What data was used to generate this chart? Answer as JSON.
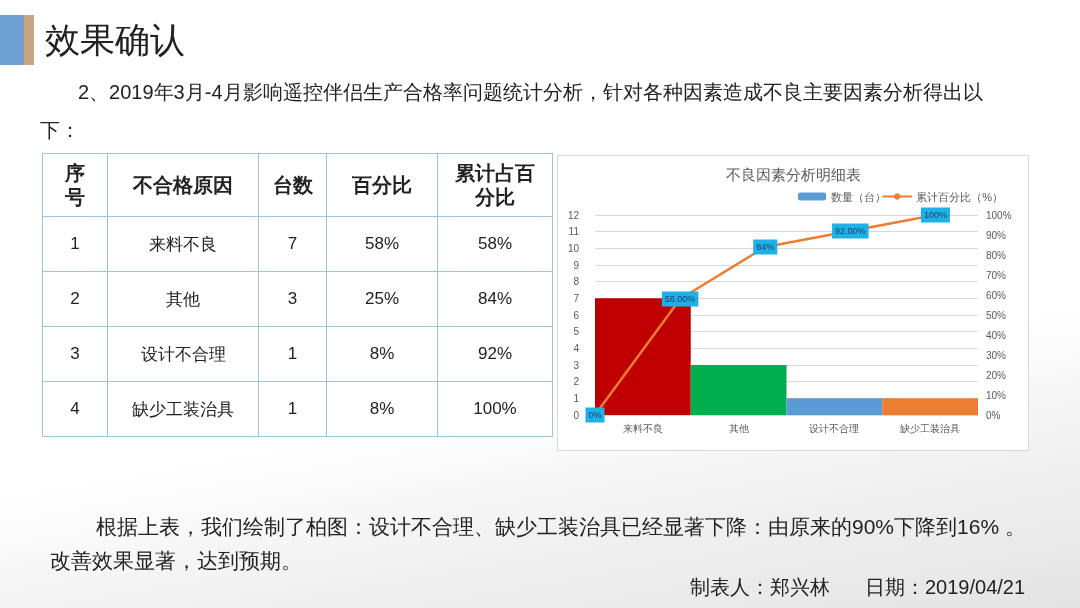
{
  "chart_data": [
    {
      "type": "other",
      "title": "效果确认",
      "subtitle": "2、2019年3月-4月影响遥控伴侣生产合格率问题统计分析，针对各种因素造成不良主要因素分析得出以下：",
      "xlabel": "不合格原因",
      "categories": [
        "来料不良",
        "其他",
        "设计不合理",
        "缺少工装治具"
      ],
      "data_labels": true,
      "series": [
        {
          "name": "序号",
          "values": [
            1,
            2,
            3,
            4
          ]
        },
        {
          "name": "台数",
          "values": [
            7,
            3,
            1,
            1
          ]
        },
        {
          "name": "百分比",
          "values": [
            58,
            25,
            8,
            8
          ],
          "value_labels": [
            "58%",
            "25%",
            "8%",
            "8%"
          ]
        },
        {
          "name": "累计占百分比",
          "values": [
            58,
            84,
            92,
            100
          ],
          "value_labels": [
            "58%",
            "84%",
            "92%",
            "100%"
          ]
        }
      ],
      "annotations": [
        "根据上表，我们绘制了柏图：设计不合理、缺少工装治具已经显著下降：由原来的90%下降到16% 。改善效果显著，达到预期。",
        "制表人：郑兴林",
        "日期：2019/04/21"
      ]
    },
    {
      "type": "bar",
      "title": "不良因素分析明细表",
      "categories": [
        "来料不良",
        "其他",
        "设计不合理",
        "缺少工装治具"
      ],
      "series": [
        {
          "name": "数量（台）",
          "color": "#5b9bd5",
          "colors": [
            "#c00000",
            "#00b050",
            "#5b9bd5",
            "#ed7d31"
          ],
          "values": [
            7,
            3,
            1,
            1
          ]
        }
      ],
      "ylim": [
        0,
        12
      ],
      "yticks": [
        0,
        1,
        2,
        3,
        4,
        5,
        6,
        7,
        8,
        9,
        10,
        11,
        12
      ],
      "grid": "y",
      "legend": "top right"
    },
    {
      "type": "line",
      "categories": [
        null,
        null,
        null,
        null,
        null
      ],
      "series": [
        {
          "name": "累计百分比（%）",
          "color": "#ed7d31",
          "values": [
            0,
            58,
            84,
            92,
            100
          ],
          "value_labels": [
            "0%",
            "58.00%",
            "84%",
            "92.00%",
            "100%"
          ]
        }
      ],
      "ylim": [
        0,
        100
      ],
      "yticks": [
        {
          "value": 0,
          "label": "0%"
        },
        {
          "value": 10,
          "label": "10%"
        },
        {
          "value": 20,
          "label": "20%"
        },
        {
          "value": 30,
          "label": "30%"
        },
        {
          "value": 40,
          "label": "40%"
        },
        {
          "value": 50,
          "label": "50%"
        },
        {
          "value": 60,
          "label": "60%"
        },
        {
          "value": 70,
          "label": "70%"
        },
        {
          "value": 80,
          "label": "80%"
        },
        {
          "value": 90,
          "label": "90%"
        },
        {
          "value": 100,
          "label": "100%"
        }
      ],
      "tick_labels": "y",
      "legend": "top right",
      "marker": "circle"
    }
  ]
}
